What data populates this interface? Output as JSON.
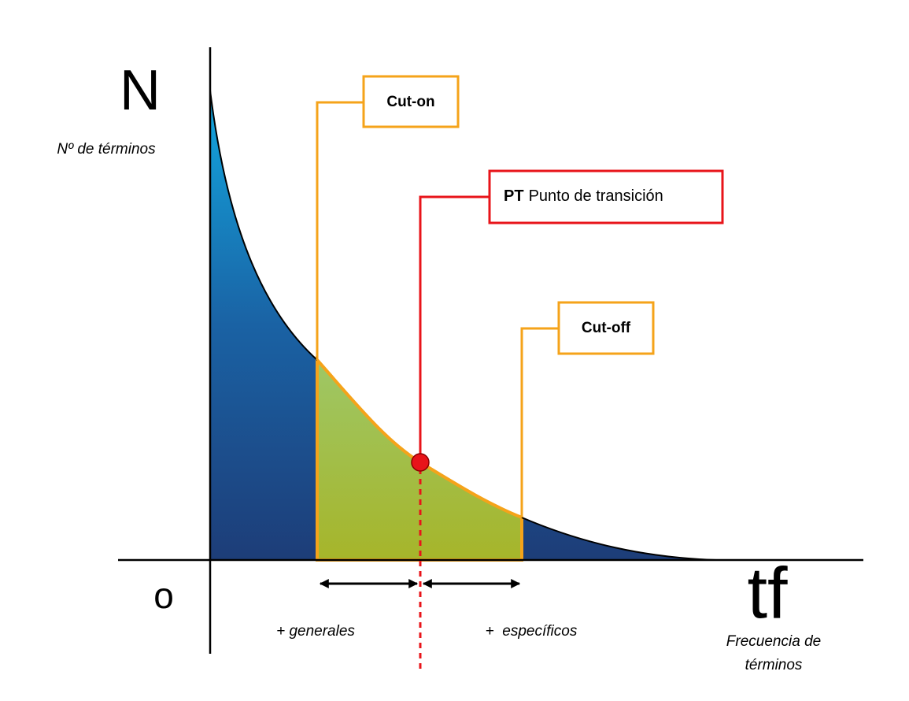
{
  "labels": {
    "y_axis_symbol": "N",
    "y_axis_label": "Nº de términos",
    "origin": "o",
    "x_axis_symbol": "tf",
    "x_axis_label": [
      "Frecuencia de",
      "términos"
    ],
    "left_range": "+ generales",
    "right_range": "+  específicos"
  },
  "boxes": {
    "cut_on": "Cut-on",
    "transition_point": {
      "abbr": "PT",
      "text": "Punto de transición"
    },
    "cut_off": "Cut-off"
  }
}
